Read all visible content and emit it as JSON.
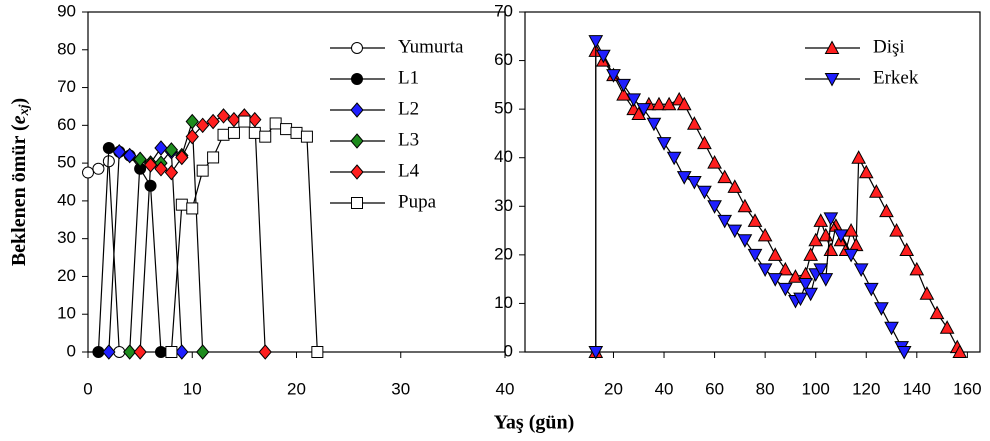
{
  "chart_data": [
    {
      "type": "line",
      "ylabel": [
        "Beklenen ömür (",
        "e",
        "xj",
        ")"
      ],
      "xlabel": "Yaş (gün)",
      "xlim": [
        0,
        40
      ],
      "xticks": [
        0,
        10,
        20,
        30,
        40
      ],
      "ylim": [
        0,
        90
      ],
      "yticks": [
        0,
        10,
        20,
        30,
        40,
        50,
        60,
        70,
        80,
        90
      ],
      "legend": "upper-right",
      "series": [
        {
          "name": "Yumurta",
          "color": "#000000",
          "marker": "circle-open",
          "x": [
            0,
            1,
            2,
            3
          ],
          "y": [
            47.5,
            48.5,
            50.5,
            0
          ]
        },
        {
          "name": "L1",
          "color": "#000000",
          "marker": "circle",
          "x": [
            1,
            2,
            3,
            4,
            5,
            6,
            7
          ],
          "y": [
            0,
            54,
            53,
            52,
            48.5,
            44,
            0
          ]
        },
        {
          "name": "L2",
          "color": "#1f1fff",
          "marker": "diamond",
          "x": [
            2,
            3,
            4,
            5,
            6,
            7,
            8,
            9
          ],
          "y": [
            0,
            53,
            52,
            51,
            50,
            54,
            53,
            0
          ]
        },
        {
          "name": "L3",
          "color": "#1e8c1e",
          "marker": "diamond",
          "x": [
            4,
            5,
            6,
            7,
            8,
            9,
            10,
            11
          ],
          "y": [
            0,
            51,
            50,
            50,
            53.5,
            52,
            61,
            0
          ]
        },
        {
          "name": "L4",
          "color": "#ff1f1f",
          "marker": "diamond",
          "x": [
            5,
            6,
            7,
            8,
            9,
            10,
            11,
            12,
            13,
            14,
            15,
            16,
            17
          ],
          "y": [
            0,
            49.5,
            48.5,
            47.5,
            51.5,
            57,
            60,
            61,
            62.5,
            61.5,
            62.5,
            61.5,
            0
          ]
        },
        {
          "name": "Pupa",
          "color": "#000000",
          "marker": "square-open",
          "x": [
            8,
            9,
            10,
            11,
            12,
            13,
            14,
            15,
            16,
            17,
            18,
            19,
            20,
            21,
            22
          ],
          "y": [
            0,
            39,
            38,
            48,
            51.5,
            57.5,
            58,
            61,
            58,
            57,
            60.5,
            59,
            58,
            57,
            0
          ]
        }
      ]
    },
    {
      "type": "line",
      "xlim": [
        -15,
        165
      ],
      "xticks": [
        20,
        40,
        60,
        80,
        100,
        120,
        140,
        160
      ],
      "ylim": [
        0,
        70
      ],
      "yticks": [
        0,
        10,
        20,
        30,
        40,
        50,
        60,
        70
      ],
      "legend": "upper-right",
      "series": [
        {
          "name": "Dişi",
          "color": "#ff1f1f",
          "marker": "triangle-up",
          "x": [
            13,
            13,
            16,
            20,
            24,
            28,
            30,
            34,
            38,
            42,
            46,
            48,
            52,
            56,
            60,
            64,
            68,
            72,
            76,
            80,
            84,
            88,
            92,
            96,
            98,
            100,
            102,
            104,
            106,
            108,
            110,
            112,
            114,
            116,
            117,
            120,
            124,
            128,
            132,
            136,
            140,
            144,
            148,
            152,
            156,
            157
          ],
          "y": [
            0,
            62,
            60,
            57,
            53,
            50,
            49,
            51,
            51,
            51,
            52,
            51,
            47,
            43,
            39,
            36,
            34,
            30,
            27,
            24,
            20,
            17,
            15.5,
            16,
            20,
            23,
            27,
            24,
            21,
            26,
            23,
            21,
            25,
            22,
            40,
            37,
            33,
            29,
            25,
            21,
            17,
            12,
            8,
            5,
            1,
            0
          ]
        },
        {
          "name": "Erkek",
          "color": "#1f1fff",
          "marker": "triangle-down",
          "x": [
            13,
            13,
            16,
            20,
            24,
            28,
            32,
            36,
            40,
            44,
            48,
            52,
            56,
            60,
            64,
            68,
            72,
            76,
            80,
            84,
            88,
            92,
            94,
            96,
            98,
            100,
            102,
            104,
            106,
            110,
            114,
            118,
            122,
            126,
            130,
            134,
            135
          ],
          "y": [
            0,
            64,
            61,
            57,
            55,
            52,
            50,
            47,
            43,
            40,
            36,
            35,
            33,
            30,
            27,
            25,
            23,
            20,
            17,
            15,
            13,
            10.5,
            11,
            14,
            12,
            16,
            17,
            15,
            27.5,
            24,
            20,
            17,
            13,
            9,
            5,
            1,
            0
          ]
        }
      ]
    }
  ]
}
